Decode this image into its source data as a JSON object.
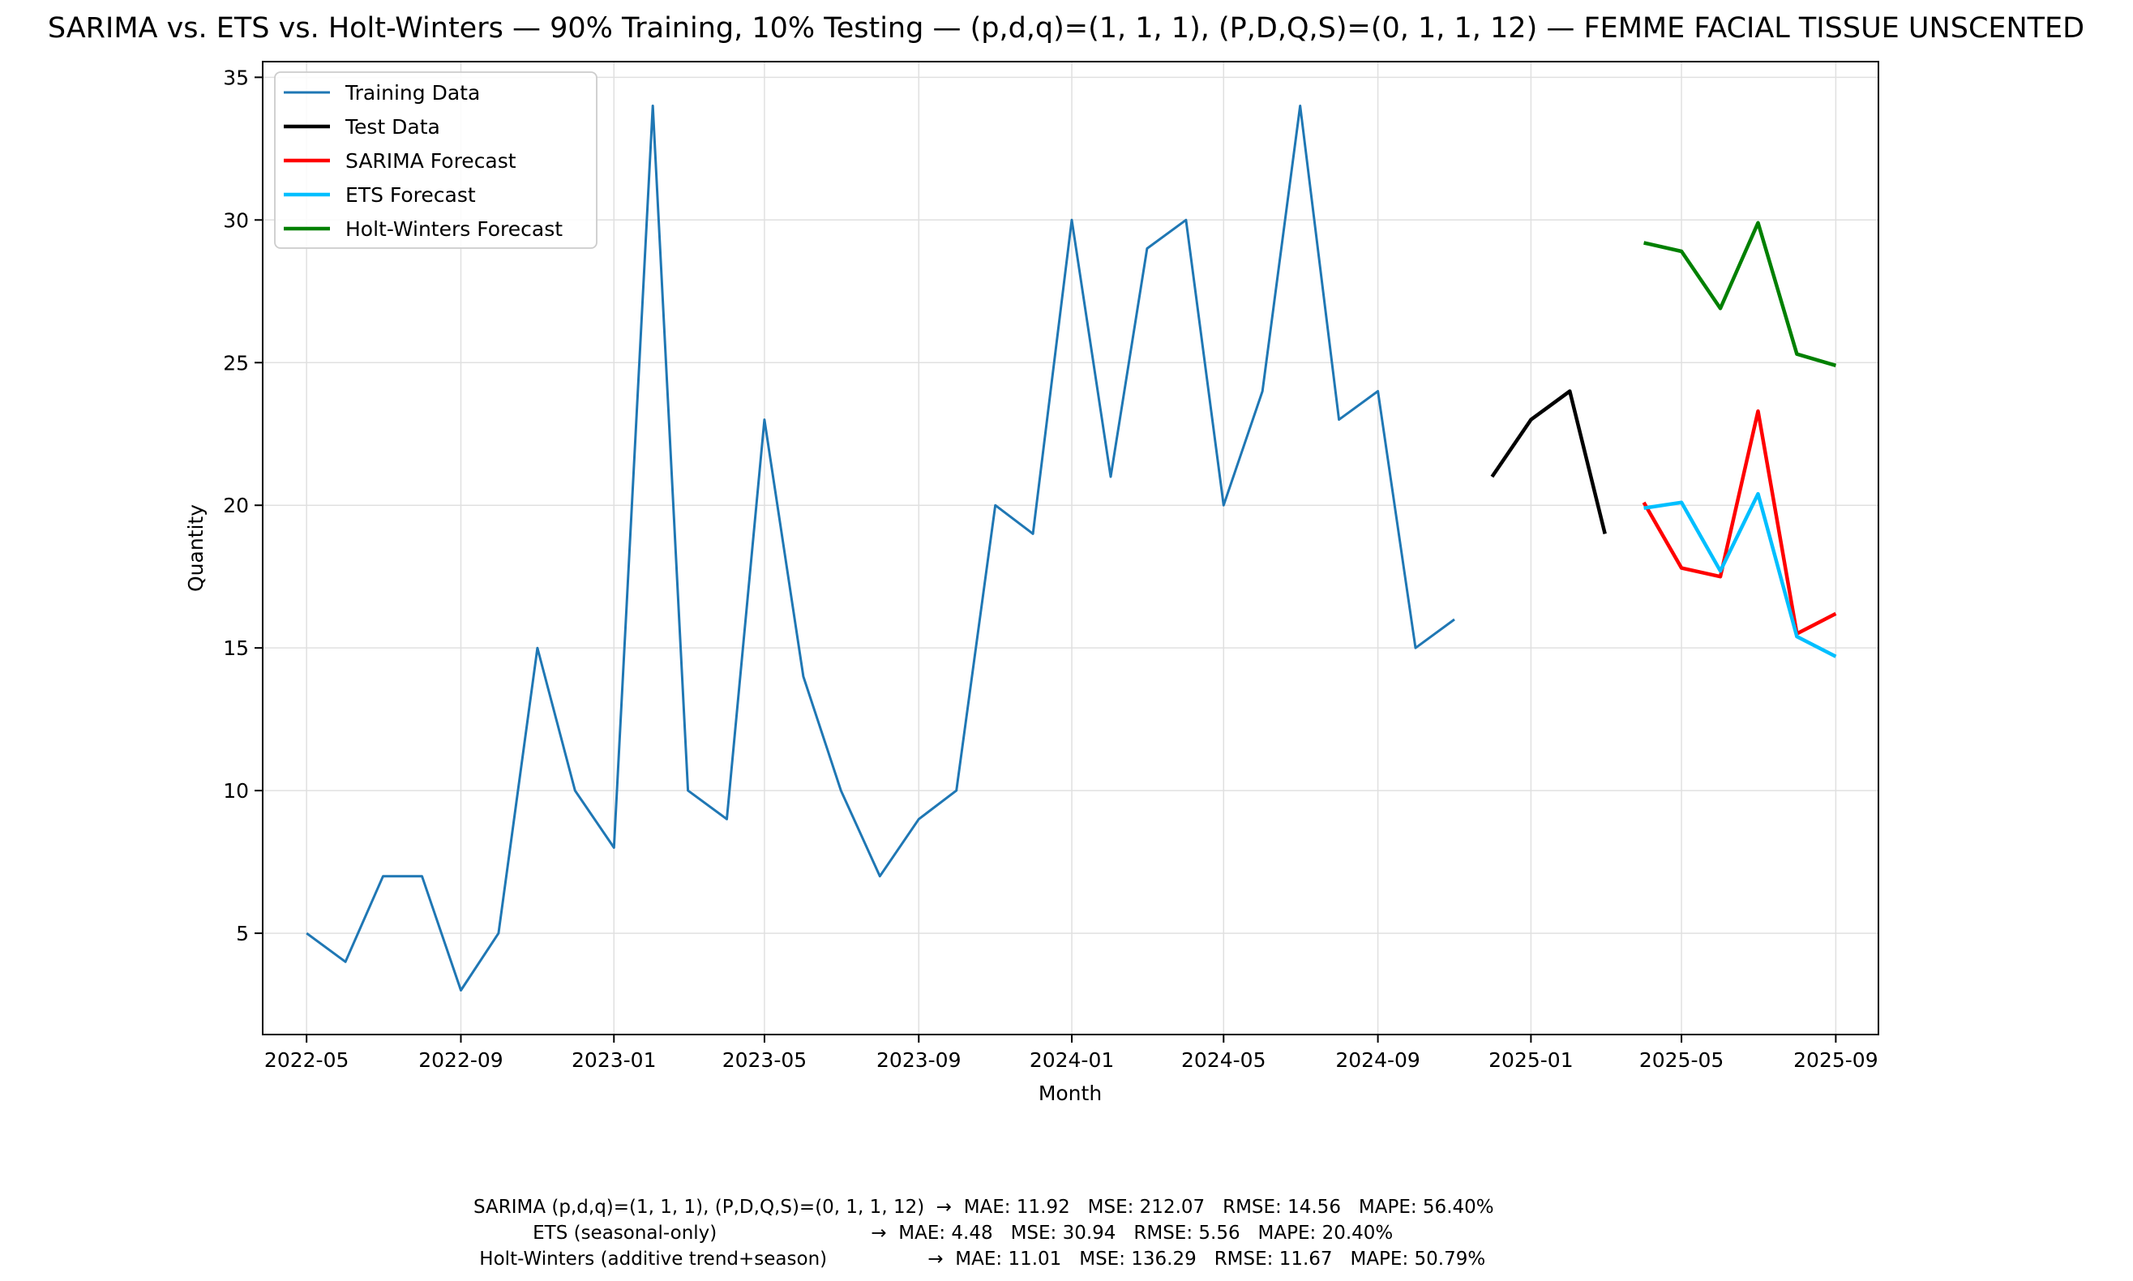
{
  "chart_data": {
    "type": "line",
    "title": "SARIMA vs. ETS vs. Holt-Winters — 90% Training, 10% Testing — (p,d,q)=(1, 1, 1), (P,D,Q,S)=(0, 1, 1, 12) — FEMME FACIAL TISSUE UNSCENTED",
    "xlabel": "Month",
    "ylabel": "Quantity",
    "ylim": [
      1.45,
      35.55
    ],
    "xlim": [
      "2022-03-27",
      "2025-10-05"
    ],
    "grid": true,
    "legend_position": "top-left",
    "x_ticks": [
      "2022-05",
      "2022-09",
      "2023-01",
      "2023-05",
      "2023-09",
      "2024-01",
      "2024-05",
      "2024-09",
      "2025-01",
      "2025-05",
      "2025-09"
    ],
    "y_ticks": [
      5,
      10,
      15,
      20,
      25,
      30,
      35
    ],
    "series": [
      {
        "name": "Training Data",
        "color": "#1f77b4",
        "x": [
          "2022-05-01",
          "2022-06-01",
          "2022-07-01",
          "2022-08-01",
          "2022-09-01",
          "2022-10-01",
          "2022-11-01",
          "2022-12-01",
          "2023-01-01",
          "2023-02-01",
          "2023-03-01",
          "2023-04-01",
          "2023-05-01",
          "2023-06-01",
          "2023-07-01",
          "2023-08-01",
          "2023-09-01",
          "2023-10-01",
          "2023-11-01",
          "2023-12-01",
          "2024-01-01",
          "2024-02-01",
          "2024-03-01",
          "2024-04-01",
          "2024-05-01",
          "2024-06-01",
          "2024-07-01",
          "2024-08-01",
          "2024-09-01",
          "2024-10-01",
          "2024-11-01"
        ],
        "values": [
          5,
          4,
          7,
          7,
          3,
          5,
          15,
          10,
          8,
          34,
          10,
          9,
          23,
          14,
          10,
          7,
          9,
          10,
          20,
          19,
          30,
          21,
          29,
          30,
          20,
          24,
          34,
          23,
          24,
          15,
          16
        ]
      },
      {
        "name": "Test Data",
        "color": "#000000",
        "x": [
          "2024-12-01",
          "2025-01-01",
          "2025-02-01",
          "2025-03-01"
        ],
        "values": [
          21,
          23,
          24,
          19
        ]
      },
      {
        "name": "SARIMA Forecast",
        "color": "#ff0000",
        "x": [
          "2025-04-01",
          "2025-05-01",
          "2025-06-01",
          "2025-07-01",
          "2025-08-01",
          "2025-09-01"
        ],
        "values": [
          20.1,
          17.8,
          17.5,
          23.3,
          15.5,
          16.2
        ]
      },
      {
        "name": "ETS Forecast",
        "color": "#00bfff",
        "x": [
          "2025-04-01",
          "2025-05-01",
          "2025-06-01",
          "2025-07-01",
          "2025-08-01",
          "2025-09-01"
        ],
        "values": [
          19.9,
          20.1,
          17.7,
          20.4,
          15.4,
          14.7
        ]
      },
      {
        "name": "Holt-Winters Forecast",
        "color": "#008000",
        "x": [
          "2025-04-01",
          "2025-05-01",
          "2025-06-01",
          "2025-07-01",
          "2025-08-01",
          "2025-09-01"
        ],
        "values": [
          29.2,
          28.9,
          26.9,
          29.9,
          25.3,
          24.9
        ]
      }
    ],
    "metrics": [
      "SARIMA (p,d,q)=(1, 1, 1), (P,D,Q,S)=(0, 1, 1, 12)  →  MAE: 11.92   MSE: 212.07   RMSE: 14.56   MAPE: 56.40%",
      "          ETS (seasonal-only)                          →  MAE: 4.48   MSE: 30.94   RMSE: 5.56   MAPE: 20.40%",
      " Holt-Winters (additive trend+season)                 →  MAE: 11.01   MSE: 136.29   RMSE: 11.67   MAPE: 50.79%"
    ]
  }
}
